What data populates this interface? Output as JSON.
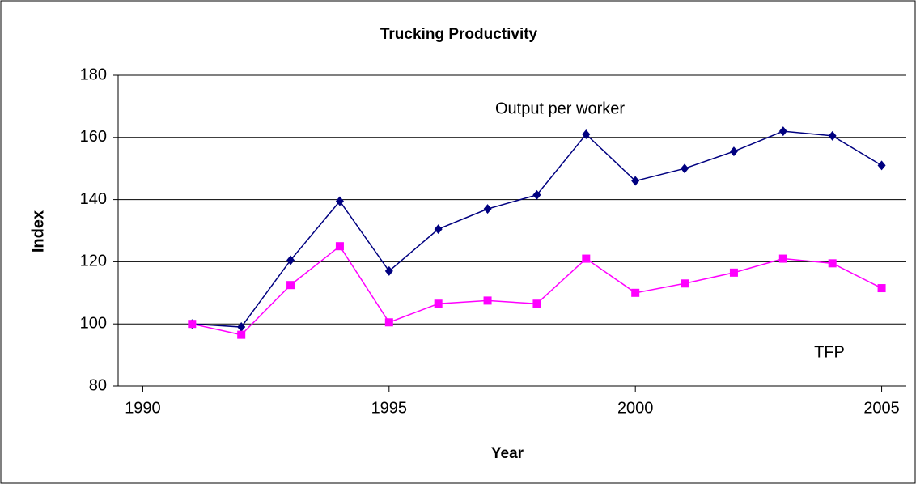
{
  "chart_data": {
    "type": "line",
    "title": "Trucking Productivity",
    "xlabel": "Year",
    "ylabel": "Index",
    "x": [
      1991,
      1992,
      1993,
      1994,
      1995,
      1996,
      1997,
      1998,
      1999,
      2000,
      2001,
      2002,
      2003,
      2004,
      2005
    ],
    "series": [
      {
        "name": "Output per worker",
        "color": "#000080",
        "marker": "diamond",
        "values": [
          100,
          99,
          120.5,
          139.5,
          117,
          130.5,
          137,
          141.5,
          161,
          146,
          150,
          155.5,
          162,
          160.5,
          151
        ]
      },
      {
        "name": "TFP",
        "color": "#ff00ff",
        "marker": "square",
        "values": [
          100,
          96.5,
          112.5,
          125,
          100.5,
          106.5,
          107.5,
          106.5,
          121,
          110,
          113,
          116.5,
          121,
          119.5,
          111.5
        ]
      }
    ],
    "xlim": [
      1989.5,
      2005.5
    ],
    "xticks": [
      1990,
      1995,
      2000,
      2005
    ],
    "ylim": [
      80,
      180
    ],
    "yticks": [
      80,
      100,
      120,
      140,
      160,
      180
    ],
    "grid": true
  }
}
